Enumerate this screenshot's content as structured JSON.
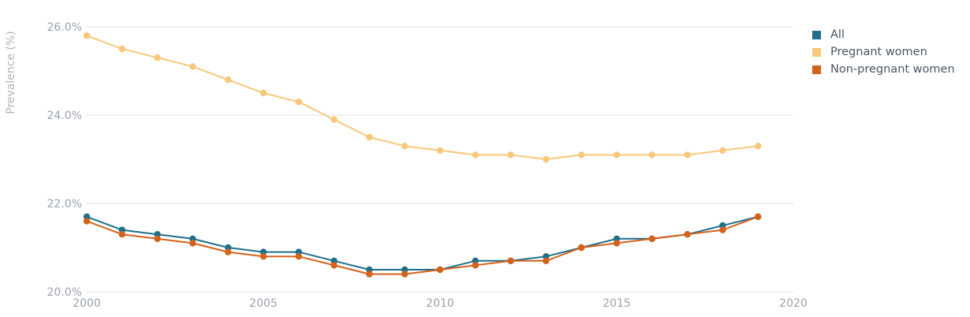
{
  "chart_data": {
    "type": "line",
    "title": "",
    "xlabel": "",
    "ylabel": "Prevalence (%)",
    "x": [
      2000,
      2001,
      2002,
      2003,
      2004,
      2005,
      2006,
      2007,
      2008,
      2009,
      2010,
      2011,
      2012,
      2013,
      2014,
      2015,
      2016,
      2017,
      2018,
      2019
    ],
    "xlim": [
      2000,
      2020
    ],
    "ylim": [
      20,
      26
    ],
    "xticks": [
      "2000",
      "2005",
      "2010",
      "2015",
      "2020"
    ],
    "yticks": [
      "20.0%",
      "22.0%",
      "24.0%",
      "26.0%"
    ],
    "grid": "horizontal",
    "legend_position": "top-right",
    "series": [
      {
        "name": "All",
        "color": "#1f6f8b",
        "values": [
          21.7,
          21.4,
          21.3,
          21.2,
          21.0,
          20.9,
          20.9,
          20.7,
          20.5,
          20.5,
          20.5,
          20.7,
          20.7,
          20.8,
          21.0,
          21.2,
          21.2,
          21.3,
          21.5,
          21.7
        ]
      },
      {
        "name": "Pregnant women",
        "color": "#f7c87a",
        "values": [
          25.8,
          25.5,
          25.3,
          25.1,
          24.8,
          24.5,
          24.3,
          23.9,
          23.5,
          23.3,
          23.2,
          23.1,
          23.1,
          23.0,
          23.1,
          23.1,
          23.1,
          23.1,
          23.2,
          23.3
        ]
      },
      {
        "name": "Non-pregnant women",
        "color": "#d4621a",
        "values": [
          21.6,
          21.3,
          21.2,
          21.1,
          20.9,
          20.8,
          20.8,
          20.6,
          20.4,
          20.4,
          20.5,
          20.6,
          20.7,
          20.7,
          21.0,
          21.1,
          21.2,
          21.3,
          21.4,
          21.7
        ]
      }
    ]
  }
}
